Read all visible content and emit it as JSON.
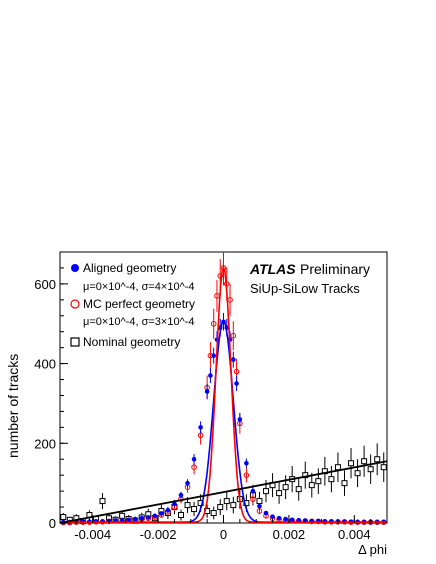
{
  "chart_data": {
    "type": "scatter",
    "title": "",
    "xlabel": "Δ phi",
    "ylabel": "number of tracks",
    "xlim": [
      -0.005,
      0.005
    ],
    "ylim": [
      0,
      680
    ],
    "x_ticks": [
      -0.004,
      -0.002,
      0,
      0.002,
      0.004
    ],
    "x_tick_labels": [
      "-0.004",
      "-0.002",
      "0",
      "0.002",
      "0.004"
    ],
    "y_ticks": [
      0,
      200,
      400,
      600
    ],
    "y_tick_labels": [
      "0",
      "200",
      "400",
      "600"
    ],
    "grid": false,
    "atlas_label": "ATLAS",
    "atlas_sublabel": "Preliminary",
    "selection_label": "SiUp-SiLow Tracks",
    "legend_placement": "top-left",
    "legend": [
      {
        "name": "Aligned geometry",
        "params": "μ=0×10^-4, σ=4×10^-4",
        "marker": "filled-circle",
        "color": "#0000ff"
      },
      {
        "name": "MC perfect geometry",
        "params": "μ=0×10^-4, σ=3×10^-4",
        "marker": "open-circle",
        "color": "#ff0000"
      },
      {
        "name": "Nominal geometry",
        "params": "",
        "marker": "open-square",
        "color": "#000000"
      }
    ],
    "series": [
      {
        "name": "Aligned geometry",
        "color": "#0000ff",
        "x": [
          -0.0049,
          -0.0047,
          -0.0045,
          -0.0043,
          -0.0041,
          -0.0039,
          -0.0037,
          -0.0035,
          -0.0033,
          -0.0031,
          -0.0029,
          -0.0027,
          -0.0025,
          -0.0023,
          -0.0021,
          -0.0019,
          -0.0017,
          -0.0015,
          -0.0013,
          -0.0011,
          -0.0009,
          -0.0007,
          -0.0005,
          -0.0004,
          -0.0003,
          -0.0002,
          -0.0001,
          0.0,
          0.0001,
          0.0002,
          0.0003,
          0.0004,
          0.0005,
          0.0007,
          0.0009,
          0.0011,
          0.0013,
          0.0015,
          0.0017,
          0.0019,
          0.0021,
          0.0023,
          0.0025,
          0.0027,
          0.0029,
          0.0031,
          0.0033,
          0.0035,
          0.0037,
          0.0039,
          0.0041,
          0.0043,
          0.0045,
          0.0047,
          0.0049
        ],
        "y": [
          2,
          2,
          3,
          3,
          3,
          4,
          4,
          5,
          6,
          6,
          8,
          10,
          12,
          14,
          18,
          24,
          32,
          48,
          70,
          100,
          160,
          240,
          330,
          370,
          420,
          460,
          490,
          505,
          490,
          460,
          410,
          350,
          260,
          150,
          80,
          42,
          25,
          16,
          12,
          10,
          8,
          7,
          6,
          5,
          5,
          4,
          4,
          3,
          3,
          3,
          2,
          2,
          2,
          2,
          2
        ],
        "errors": [
          1,
          1,
          2,
          2,
          2,
          2,
          2,
          2,
          2,
          2,
          3,
          3,
          3,
          4,
          4,
          5,
          6,
          7,
          8,
          10,
          13,
          15,
          18,
          19,
          20,
          21,
          22,
          22,
          22,
          21,
          20,
          19,
          16,
          12,
          9,
          6,
          5,
          4,
          3,
          3,
          3,
          3,
          2,
          2,
          2,
          2,
          2,
          2,
          2,
          2,
          1,
          1,
          1,
          1,
          1
        ],
        "fit": {
          "mean": 0.0,
          "sigma": 0.0004
        }
      },
      {
        "name": "MC perfect geometry",
        "color": "#ff0000",
        "x": [
          -0.0049,
          -0.0047,
          -0.0045,
          -0.0043,
          -0.0041,
          -0.0039,
          -0.0037,
          -0.0035,
          -0.0033,
          -0.0031,
          -0.0029,
          -0.0027,
          -0.0025,
          -0.0023,
          -0.0021,
          -0.0019,
          -0.0017,
          -0.0015,
          -0.0013,
          -0.0011,
          -0.0009,
          -0.0007,
          -0.0005,
          -0.0004,
          -0.0003,
          -0.0002,
          -0.0001,
          0.0,
          0.0001,
          0.0002,
          0.0003,
          0.0004,
          0.0005,
          0.0007,
          0.0009,
          0.0011,
          0.0013,
          0.0015,
          0.0017,
          0.0019,
          0.0021,
          0.0023,
          0.0025,
          0.0027,
          0.0029,
          0.0031,
          0.0033,
          0.0035,
          0.0037,
          0.0039,
          0.0041,
          0.0043,
          0.0045,
          0.0047,
          0.0049
        ],
        "y": [
          1,
          1,
          2,
          2,
          2,
          3,
          3,
          4,
          5,
          5,
          6,
          8,
          10,
          12,
          15,
          20,
          28,
          40,
          60,
          90,
          140,
          220,
          340,
          420,
          500,
          570,
          620,
          640,
          600,
          560,
          470,
          380,
          250,
          120,
          60,
          30,
          18,
          12,
          9,
          7,
          6,
          5,
          5,
          4,
          4,
          3,
          3,
          3,
          3,
          2,
          2,
          2,
          2,
          2,
          2
        ],
        "errors": [
          1,
          1,
          2,
          2,
          2,
          2,
          2,
          3,
          3,
          3,
          3,
          4,
          4,
          5,
          5,
          6,
          7,
          9,
          11,
          14,
          18,
          23,
          30,
          34,
          38,
          40,
          42,
          44,
          42,
          40,
          36,
          32,
          26,
          18,
          12,
          8,
          6,
          5,
          4,
          4,
          3,
          3,
          3,
          3,
          3,
          2,
          2,
          2,
          2,
          2,
          2,
          2,
          2,
          2,
          2
        ],
        "fit": {
          "mean": 0.0,
          "sigma": 0.0003
        }
      },
      {
        "name": "Nominal geometry",
        "color": "#000000",
        "x": [
          -0.0049,
          -0.0047,
          -0.0045,
          -0.0043,
          -0.0041,
          -0.0039,
          -0.0037,
          -0.0035,
          -0.0033,
          -0.0031,
          -0.0029,
          -0.0027,
          -0.0025,
          -0.0023,
          -0.0021,
          -0.0019,
          -0.0017,
          -0.0015,
          -0.0013,
          -0.0011,
          -0.0009,
          -0.0007,
          -0.0005,
          -0.0003,
          -0.0001,
          0.0001,
          0.0003,
          0.0005,
          0.0007,
          0.0009,
          0.0011,
          0.0013,
          0.0015,
          0.0017,
          0.0019,
          0.0021,
          0.0023,
          0.0025,
          0.0027,
          0.0029,
          0.0031,
          0.0033,
          0.0035,
          0.0037,
          0.0039,
          0.0041,
          0.0043,
          0.0045,
          0.0047,
          0.0049
        ],
        "y": [
          15,
          8,
          12,
          5,
          20,
          10,
          55,
          12,
          8,
          18,
          10,
          6,
          14,
          22,
          12,
          30,
          25,
          40,
          20,
          45,
          35,
          50,
          30,
          25,
          40,
          55,
          45,
          60,
          50,
          70,
          55,
          80,
          95,
          75,
          90,
          110,
          85,
          120,
          95,
          105,
          130,
          110,
          140,
          100,
          150,
          125,
          155,
          135,
          160,
          140
        ],
        "errors": [
          10,
          8,
          10,
          7,
          12,
          9,
          20,
          10,
          9,
          12,
          10,
          8,
          12,
          14,
          11,
          16,
          15,
          18,
          14,
          20,
          18,
          22,
          17,
          16,
          20,
          23,
          21,
          24,
          22,
          26,
          23,
          28,
          30,
          27,
          30,
          33,
          29,
          34,
          31,
          32,
          36,
          33,
          37,
          32,
          38,
          35,
          39,
          37,
          40,
          37
        ],
        "fit": {
          "type": "linear",
          "x": [
            -0.005,
            0.005
          ],
          "y": [
            0,
            155
          ]
        }
      }
    ]
  }
}
